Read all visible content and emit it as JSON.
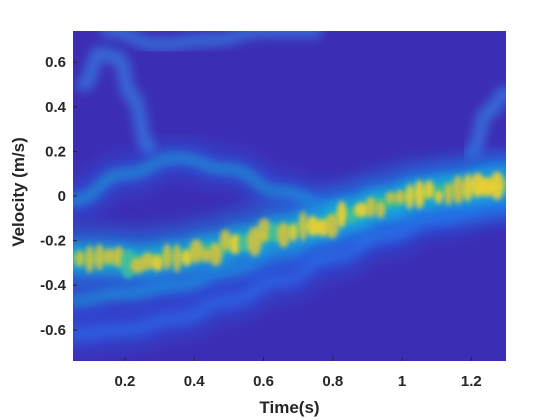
{
  "chart_data": {
    "type": "heatmap",
    "title": "",
    "xlabel": "Time(s)",
    "ylabel": "Velocity (m/s)",
    "xlim": [
      0.05,
      1.3
    ],
    "ylim": [
      -0.74,
      0.74
    ],
    "xticks": [
      0.2,
      0.4,
      0.6,
      0.8,
      1,
      1.2
    ],
    "xtick_labels": [
      "0.2",
      "0.4",
      "0.6",
      "0.8",
      "1",
      "1.2"
    ],
    "yticks": [
      -0.6,
      -0.4,
      -0.2,
      0,
      0.2,
      0.4,
      0.6
    ],
    "ytick_labels": [
      "-0.6",
      "-0.4",
      "-0.2",
      "0",
      "0.2",
      "0.4",
      "0.6"
    ],
    "colormap": "parula",
    "background_color": "#3c2eb4",
    "grid": false,
    "ridge": {
      "description": "dominant velocity track (intensity peak)",
      "time": [
        0.05,
        0.15,
        0.25,
        0.35,
        0.45,
        0.55,
        0.65,
        0.75,
        0.85,
        0.95,
        1.05,
        1.15,
        1.3
      ],
      "velocity": [
        -0.28,
        -0.28,
        -0.29,
        -0.27,
        -0.24,
        -0.2,
        -0.16,
        -0.13,
        -0.08,
        -0.03,
        0.01,
        0.03,
        0.05
      ],
      "intensity": [
        0.78,
        0.8,
        0.74,
        0.82,
        0.8,
        0.7,
        0.72,
        0.8,
        0.76,
        0.82,
        0.9,
        0.85,
        0.8
      ]
    },
    "secondary_bands": [
      {
        "time": [
          0.05,
          0.2,
          0.35,
          0.5,
          0.65,
          0.8,
          0.95,
          1.1,
          1.3
        ],
        "velocity": [
          -0.47,
          -0.44,
          -0.4,
          -0.33,
          -0.25,
          -0.16,
          -0.09,
          -0.04,
          0.0
        ],
        "intensity": [
          0.4,
          0.45,
          0.5,
          0.45,
          0.4,
          0.38,
          0.35,
          0.32,
          0.3
        ]
      },
      {
        "time": [
          0.05,
          0.2,
          0.35,
          0.5,
          0.65,
          0.8,
          0.95,
          1.1,
          1.3
        ],
        "velocity": [
          -0.62,
          -0.6,
          -0.55,
          -0.47,
          -0.38,
          -0.28,
          -0.18,
          -0.1,
          -0.04
        ],
        "intensity": [
          0.3,
          0.35,
          0.35,
          0.3,
          0.28,
          0.25,
          0.22,
          0.2,
          0.2
        ]
      },
      {
        "time": [
          0.05,
          0.2,
          0.35,
          0.5,
          0.65,
          0.8,
          0.95,
          1.1,
          1.3
        ],
        "velocity": [
          -0.02,
          0.1,
          0.17,
          0.12,
          0.02,
          -0.05,
          -0.02,
          0.05,
          0.12
        ],
        "intensity": [
          0.32,
          0.38,
          0.45,
          0.42,
          0.38,
          0.3,
          0.3,
          0.32,
          0.35
        ]
      }
    ],
    "arcs": [
      {
        "time": [
          0.08,
          0.13,
          0.18,
          0.22,
          0.27
        ],
        "velocity": [
          0.5,
          0.64,
          0.62,
          0.45,
          0.22
        ],
        "intensity": 0.3
      },
      {
        "time": [
          1.2,
          1.25,
          1.3
        ],
        "velocity": [
          0.2,
          0.38,
          0.46
        ],
        "intensity": 0.3
      },
      {
        "time": [
          0.15,
          0.3,
          0.45,
          0.6,
          0.75
        ],
        "velocity": [
          0.74,
          0.68,
          0.7,
          0.74,
          0.74
        ],
        "intensity": 0.25
      }
    ]
  }
}
